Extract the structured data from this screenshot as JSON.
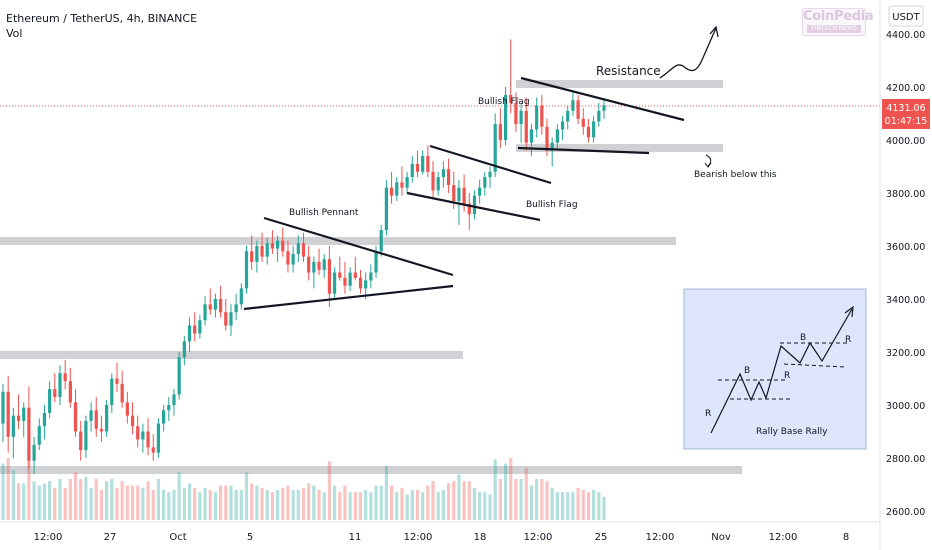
{
  "header": {
    "title": "Ethereum / TetherUS, 4h, BINANCE",
    "indicator": "Vol"
  },
  "watermark": {
    "name": "CoinPedia",
    "tagline": "FINTECH NEWS"
  },
  "price_axis": {
    "unit": "USDT",
    "ticks": [
      "4400.00",
      "4200.00",
      "4000.00",
      "3800.00",
      "3600.00",
      "3400.00",
      "3200.00",
      "3000.00",
      "2800.00",
      "2600.00"
    ],
    "current_price": "4131.06",
    "countdown": "01:47:15"
  },
  "time_axis": {
    "ticks": [
      "12:00",
      "27",
      "Oct",
      "5",
      "11",
      "12:00",
      "18",
      "12:00",
      "25",
      "12:00",
      "Nov",
      "12:00",
      "8"
    ]
  },
  "annotations": {
    "resistance": "Resistance",
    "bullish_flag_top": "Bullish Flag",
    "bullish_flag_mid": "Bullish Flag",
    "bullish_pennant": "Bullish Pennant",
    "bearish_below": "Bearish below this"
  },
  "inset": {
    "caption": "Rally Base Rally",
    "labels": [
      "R",
      "B",
      "R",
      "B",
      "R"
    ]
  },
  "colors": {
    "up": "#26a69a",
    "down": "#ef5350",
    "zone": "#c8c9cc",
    "inset_bg": "#dde6fb",
    "price_tag": "#ef5350"
  },
  "chart_data": {
    "type": "candlestick",
    "symbol": "ETHUSDT",
    "interval": "4h",
    "ylim": [
      2560,
      4480
    ],
    "grid": false,
    "support_resistance_zones": [
      4200,
      3970,
      3610,
      3180,
      2750
    ],
    "ohlc_points": [
      {
        "o": 2930,
        "h": 3080,
        "l": 2860,
        "c": 3050
      },
      {
        "o": 3050,
        "h": 3110,
        "l": 2820,
        "c": 2880
      },
      {
        "o": 2880,
        "h": 2990,
        "l": 2800,
        "c": 2960
      },
      {
        "o": 2960,
        "h": 3040,
        "l": 2910,
        "c": 2940
      },
      {
        "o": 2940,
        "h": 3010,
        "l": 2880,
        "c": 2990
      },
      {
        "o": 2990,
        "h": 3070,
        "l": 2760,
        "c": 2790
      },
      {
        "o": 2790,
        "h": 2880,
        "l": 2740,
        "c": 2850
      },
      {
        "o": 2850,
        "h": 2950,
        "l": 2830,
        "c": 2920
      },
      {
        "o": 2920,
        "h": 3000,
        "l": 2870,
        "c": 2970
      },
      {
        "o": 2970,
        "h": 3090,
        "l": 2950,
        "c": 3060
      },
      {
        "o": 3060,
        "h": 3120,
        "l": 3010,
        "c": 3030
      },
      {
        "o": 3030,
        "h": 3150,
        "l": 3000,
        "c": 3120
      },
      {
        "o": 3120,
        "h": 3170,
        "l": 3060,
        "c": 3090
      },
      {
        "o": 3090,
        "h": 3140,
        "l": 2990,
        "c": 3010
      },
      {
        "o": 3010,
        "h": 3060,
        "l": 2880,
        "c": 2900
      },
      {
        "o": 2900,
        "h": 2940,
        "l": 2790,
        "c": 2830
      },
      {
        "o": 2830,
        "h": 2960,
        "l": 2800,
        "c": 2940
      },
      {
        "o": 2940,
        "h": 3010,
        "l": 2900,
        "c": 2980
      },
      {
        "o": 2980,
        "h": 3030,
        "l": 2880,
        "c": 2910
      },
      {
        "o": 2910,
        "h": 2960,
        "l": 2860,
        "c": 2900
      },
      {
        "o": 2900,
        "h": 3020,
        "l": 2880,
        "c": 3000
      },
      {
        "o": 3000,
        "h": 3120,
        "l": 2970,
        "c": 3100
      },
      {
        "o": 3100,
        "h": 3160,
        "l": 3050,
        "c": 3080
      },
      {
        "o": 3080,
        "h": 3130,
        "l": 2990,
        "c": 3010
      },
      {
        "o": 3010,
        "h": 3050,
        "l": 2930,
        "c": 2960
      },
      {
        "o": 2960,
        "h": 3010,
        "l": 2890,
        "c": 2920
      },
      {
        "o": 2920,
        "h": 2960,
        "l": 2840,
        "c": 2870
      },
      {
        "o": 2870,
        "h": 2930,
        "l": 2820,
        "c": 2900
      },
      {
        "o": 2900,
        "h": 2950,
        "l": 2810,
        "c": 2840
      },
      {
        "o": 2840,
        "h": 2890,
        "l": 2790,
        "c": 2820
      },
      {
        "o": 2820,
        "h": 2950,
        "l": 2800,
        "c": 2930
      },
      {
        "o": 2930,
        "h": 3000,
        "l": 2900,
        "c": 2980
      },
      {
        "o": 2980,
        "h": 3030,
        "l": 2940,
        "c": 3000
      },
      {
        "o": 3000,
        "h": 3060,
        "l": 2960,
        "c": 3040
      },
      {
        "o": 3040,
        "h": 3200,
        "l": 3020,
        "c": 3180
      },
      {
        "o": 3180,
        "h": 3260,
        "l": 3150,
        "c": 3240
      },
      {
        "o": 3240,
        "h": 3330,
        "l": 3200,
        "c": 3300
      },
      {
        "o": 3300,
        "h": 3350,
        "l": 3240,
        "c": 3270
      },
      {
        "o": 3270,
        "h": 3340,
        "l": 3250,
        "c": 3320
      },
      {
        "o": 3320,
        "h": 3410,
        "l": 3300,
        "c": 3380
      },
      {
        "o": 3380,
        "h": 3440,
        "l": 3340,
        "c": 3360
      },
      {
        "o": 3360,
        "h": 3420,
        "l": 3330,
        "c": 3400
      },
      {
        "o": 3400,
        "h": 3450,
        "l": 3330,
        "c": 3350
      },
      {
        "o": 3350,
        "h": 3400,
        "l": 3280,
        "c": 3300
      },
      {
        "o": 3300,
        "h": 3380,
        "l": 3260,
        "c": 3350
      },
      {
        "o": 3350,
        "h": 3420,
        "l": 3320,
        "c": 3380
      },
      {
        "o": 3380,
        "h": 3460,
        "l": 3360,
        "c": 3440
      },
      {
        "o": 3440,
        "h": 3600,
        "l": 3420,
        "c": 3580
      },
      {
        "o": 3580,
        "h": 3640,
        "l": 3510,
        "c": 3540
      },
      {
        "o": 3540,
        "h": 3620,
        "l": 3500,
        "c": 3600
      },
      {
        "o": 3600,
        "h": 3650,
        "l": 3540,
        "c": 3560
      },
      {
        "o": 3560,
        "h": 3630,
        "l": 3530,
        "c": 3610
      },
      {
        "o": 3610,
        "h": 3660,
        "l": 3570,
        "c": 3590
      },
      {
        "o": 3590,
        "h": 3640,
        "l": 3540,
        "c": 3620
      },
      {
        "o": 3620,
        "h": 3670,
        "l": 3560,
        "c": 3580
      },
      {
        "o": 3580,
        "h": 3620,
        "l": 3500,
        "c": 3530
      },
      {
        "o": 3530,
        "h": 3600,
        "l": 3500,
        "c": 3570
      },
      {
        "o": 3570,
        "h": 3640,
        "l": 3540,
        "c": 3610
      },
      {
        "o": 3610,
        "h": 3650,
        "l": 3540,
        "c": 3560
      },
      {
        "o": 3560,
        "h": 3600,
        "l": 3470,
        "c": 3500
      },
      {
        "o": 3500,
        "h": 3560,
        "l": 3440,
        "c": 3540
      },
      {
        "o": 3540,
        "h": 3590,
        "l": 3490,
        "c": 3510
      },
      {
        "o": 3510,
        "h": 3570,
        "l": 3480,
        "c": 3550
      },
      {
        "o": 3550,
        "h": 3600,
        "l": 3370,
        "c": 3420
      },
      {
        "o": 3420,
        "h": 3520,
        "l": 3400,
        "c": 3500
      },
      {
        "o": 3500,
        "h": 3560,
        "l": 3470,
        "c": 3480
      },
      {
        "o": 3480,
        "h": 3540,
        "l": 3420,
        "c": 3450
      },
      {
        "o": 3450,
        "h": 3520,
        "l": 3430,
        "c": 3500
      },
      {
        "o": 3500,
        "h": 3560,
        "l": 3470,
        "c": 3480
      },
      {
        "o": 3480,
        "h": 3510,
        "l": 3420,
        "c": 3440
      },
      {
        "o": 3440,
        "h": 3500,
        "l": 3400,
        "c": 3470
      },
      {
        "o": 3470,
        "h": 3530,
        "l": 3440,
        "c": 3500
      },
      {
        "o": 3500,
        "h": 3600,
        "l": 3480,
        "c": 3580
      },
      {
        "o": 3580,
        "h": 3680,
        "l": 3560,
        "c": 3660
      },
      {
        "o": 3660,
        "h": 3850,
        "l": 3640,
        "c": 3820
      },
      {
        "o": 3820,
        "h": 3880,
        "l": 3760,
        "c": 3790
      },
      {
        "o": 3790,
        "h": 3860,
        "l": 3770,
        "c": 3840
      },
      {
        "o": 3840,
        "h": 3900,
        "l": 3790,
        "c": 3820
      },
      {
        "o": 3820,
        "h": 3880,
        "l": 3800,
        "c": 3860
      },
      {
        "o": 3860,
        "h": 3940,
        "l": 3840,
        "c": 3910
      },
      {
        "o": 3910,
        "h": 3960,
        "l": 3860,
        "c": 3880
      },
      {
        "o": 3880,
        "h": 3960,
        "l": 3870,
        "c": 3940
      },
      {
        "o": 3940,
        "h": 3980,
        "l": 3860,
        "c": 3880
      },
      {
        "o": 3880,
        "h": 3920,
        "l": 3780,
        "c": 3810
      },
      {
        "o": 3810,
        "h": 3880,
        "l": 3790,
        "c": 3860
      },
      {
        "o": 3860,
        "h": 3920,
        "l": 3820,
        "c": 3890
      },
      {
        "o": 3890,
        "h": 3930,
        "l": 3800,
        "c": 3830
      },
      {
        "o": 3830,
        "h": 3880,
        "l": 3740,
        "c": 3770
      },
      {
        "o": 3770,
        "h": 3850,
        "l": 3680,
        "c": 3820
      },
      {
        "o": 3820,
        "h": 3870,
        "l": 3730,
        "c": 3760
      },
      {
        "o": 3760,
        "h": 3800,
        "l": 3660,
        "c": 3720
      },
      {
        "o": 3720,
        "h": 3810,
        "l": 3700,
        "c": 3790
      },
      {
        "o": 3790,
        "h": 3850,
        "l": 3760,
        "c": 3820
      },
      {
        "o": 3820,
        "h": 3880,
        "l": 3790,
        "c": 3860
      },
      {
        "o": 3860,
        "h": 3900,
        "l": 3820,
        "c": 3880
      },
      {
        "o": 3880,
        "h": 4100,
        "l": 3860,
        "c": 4060
      },
      {
        "o": 4060,
        "h": 4120,
        "l": 3970,
        "c": 4000
      },
      {
        "o": 4000,
        "h": 4200,
        "l": 3980,
        "c": 4170
      },
      {
        "o": 4170,
        "h": 4380,
        "l": 4100,
        "c": 4140
      },
      {
        "o": 4140,
        "h": 4180,
        "l": 4030,
        "c": 4060
      },
      {
        "o": 4060,
        "h": 4140,
        "l": 3990,
        "c": 4110
      },
      {
        "o": 4110,
        "h": 4160,
        "l": 3960,
        "c": 3990
      },
      {
        "o": 3990,
        "h": 4060,
        "l": 3940,
        "c": 4040
      },
      {
        "o": 4040,
        "h": 4160,
        "l": 4010,
        "c": 4130
      },
      {
        "o": 4130,
        "h": 4170,
        "l": 4020,
        "c": 4050
      },
      {
        "o": 4050,
        "h": 4080,
        "l": 3940,
        "c": 3960
      },
      {
        "o": 3960,
        "h": 4010,
        "l": 3900,
        "c": 3990
      },
      {
        "o": 3990,
        "h": 4060,
        "l": 3970,
        "c": 4040
      },
      {
        "o": 4040,
        "h": 4090,
        "l": 4000,
        "c": 4070
      },
      {
        "o": 4070,
        "h": 4130,
        "l": 4040,
        "c": 4110
      },
      {
        "o": 4110,
        "h": 4180,
        "l": 4090,
        "c": 4150
      },
      {
        "o": 4150,
        "h": 4170,
        "l": 4060,
        "c": 4080
      },
      {
        "o": 4080,
        "h": 4120,
        "l": 4020,
        "c": 4050
      },
      {
        "o": 4050,
        "h": 4080,
        "l": 3990,
        "c": 4010
      },
      {
        "o": 4010,
        "h": 4090,
        "l": 3990,
        "c": 4070
      },
      {
        "o": 4070,
        "h": 4140,
        "l": 4050,
        "c": 4110
      },
      {
        "o": 4110,
        "h": 4150,
        "l": 4080,
        "c": 4131
      }
    ],
    "current_price": 4131.06
  }
}
